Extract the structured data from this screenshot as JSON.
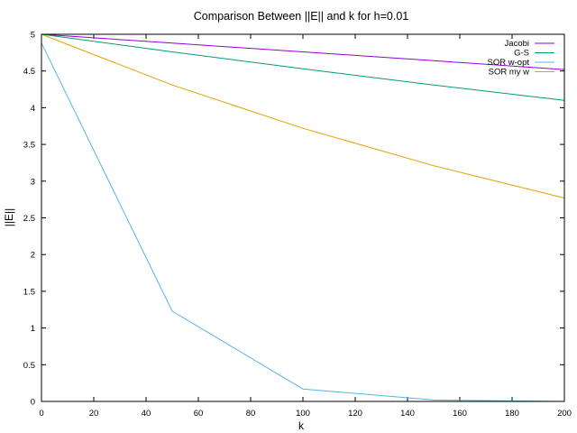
{
  "chart_data": {
    "type": "line",
    "title": "Comparison Between ||E|| and k for h=0.01",
    "xlabel": "k",
    "ylabel": "||E||",
    "xlim": [
      0,
      200
    ],
    "ylim": [
      0,
      5
    ],
    "xticks": [
      0,
      20,
      40,
      60,
      80,
      100,
      120,
      140,
      160,
      180,
      200
    ],
    "yticks": [
      0,
      0.5,
      1,
      1.5,
      2,
      2.5,
      3,
      3.5,
      4,
      4.5,
      5
    ],
    "grid": false,
    "legend_position": "top-right",
    "series": [
      {
        "name": "Jacobi",
        "color": "#9400d3",
        "x": [
          0,
          50,
          100,
          150,
          200
        ],
        "y": [
          5.0,
          4.88,
          4.76,
          4.64,
          4.52
        ]
      },
      {
        "name": "G-S",
        "color": "#009e73",
        "x": [
          0,
          50,
          100,
          150,
          200
        ],
        "y": [
          5.0,
          4.76,
          4.53,
          4.31,
          4.1
        ]
      },
      {
        "name": "SOR w-opt",
        "color": "#56b4e9",
        "x": [
          0,
          50,
          100,
          150,
          200
        ],
        "y": [
          4.88,
          1.23,
          0.17,
          0.02,
          0.0
        ]
      },
      {
        "name": "SOR my w",
        "color": "#e69f00",
        "x": [
          0,
          50,
          100,
          150,
          200
        ],
        "y": [
          5.0,
          4.31,
          3.72,
          3.21,
          2.77
        ]
      }
    ]
  }
}
